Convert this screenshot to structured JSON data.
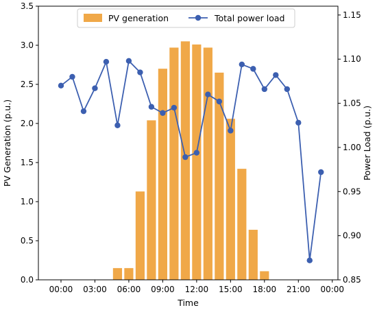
{
  "chart_data": {
    "type": "bar+line",
    "xlabel": "Time",
    "ylabel_left": "PV Generation (p.u.)",
    "ylabel_right": "Power Load (p.u.)",
    "x_tick_labels": [
      "00:00",
      "03:00",
      "06:00",
      "09:00",
      "12:00",
      "15:00",
      "18:00",
      "21:00",
      "00:00"
    ],
    "x_tick_hours": [
      0,
      3,
      6,
      9,
      12,
      15,
      18,
      21,
      24
    ],
    "xlim": [
      -2,
      24.5
    ],
    "ylim_left": [
      0,
      3.5
    ],
    "ylim_right": [
      0.85,
      1.16
    ],
    "y_ticks_left": [
      "0.0",
      "0.5",
      "1.0",
      "1.5",
      "2.0",
      "2.5",
      "3.0",
      "3.5"
    ],
    "y_ticks_right": [
      "0.85",
      "0.90",
      "0.95",
      "1.00",
      "1.05",
      "1.10",
      "1.15"
    ],
    "grid": false,
    "legend_position": "top-center",
    "series": [
      {
        "name": "PV generation",
        "kind": "bar",
        "color": "#f0a848",
        "hours": [
          0,
          1,
          2,
          3,
          4,
          5,
          6,
          7,
          8,
          9,
          10,
          11,
          12,
          13,
          14,
          15,
          16,
          17,
          18,
          19,
          20,
          21,
          22,
          23
        ],
        "values": [
          0,
          0,
          0,
          0,
          0,
          0.15,
          0.15,
          1.13,
          2.04,
          2.7,
          2.97,
          3.05,
          3.01,
          2.97,
          2.65,
          2.06,
          1.42,
          0.64,
          0.11,
          0,
          0,
          0,
          0,
          0
        ]
      },
      {
        "name": "Total power load",
        "kind": "line",
        "color": "#3c5fb0",
        "hours": [
          0,
          1,
          2,
          3,
          4,
          5,
          6,
          7,
          8,
          9,
          10,
          11,
          12,
          13,
          14,
          15,
          16,
          17,
          18,
          19,
          20,
          21,
          22,
          23
        ],
        "values": [
          1.07,
          1.08,
          1.041,
          1.067,
          1.097,
          1.025,
          1.098,
          1.085,
          1.046,
          1.039,
          1.045,
          0.989,
          0.994,
          1.06,
          1.052,
          1.019,
          1.094,
          1.089,
          1.066,
          1.082,
          1.066,
          1.028,
          0.872,
          0.972
        ]
      }
    ]
  }
}
